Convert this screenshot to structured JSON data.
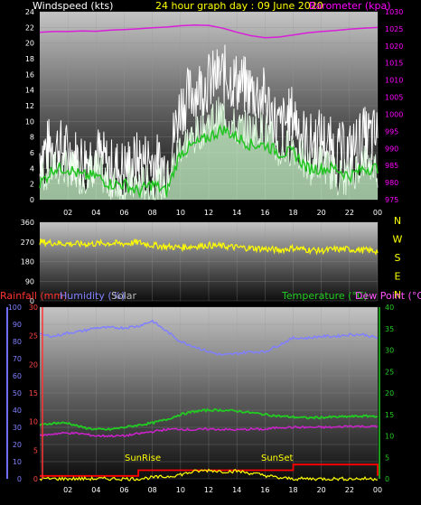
{
  "header": {
    "windspeed_label": "Windspeed (kts)",
    "title": "24 hour graph day : 09 June 2020",
    "barometer_label": "Barometer (kpa)"
  },
  "bottom_header": {
    "rainfall_label": "Rainfall (mm)",
    "humidity_label": "Humidity (%)",
    "solar_label": "Solar",
    "temperature_label": "Temperature (°C)",
    "dewpoint_label": "Dew Point (°C)"
  },
  "annotations": {
    "sunrise": "SunRise",
    "sunset": "SunSet"
  },
  "colors": {
    "windspeed": "#ffffff",
    "gust": "#ffffff",
    "wind_avg": "#22c422",
    "wind_fill": "#c8f5c8",
    "barometer": "#d81ed8",
    "direction": "#ffff00",
    "rainfall": "#ff0000",
    "humidity": "#8080ff",
    "solar": "#ffff00",
    "temperature": "#22cc22",
    "dewpoint": "#cc22cc",
    "left_axis_bottom": "#6d6dff",
    "rain_axis": "#ff3333",
    "temp_axis": "#22cc22"
  },
  "chart_data": [
    {
      "type": "line",
      "id": "wind",
      "title": "24 hour graph day : 09 June 2020",
      "x_ticks": [
        "02",
        "04",
        "06",
        "08",
        "10",
        "12",
        "14",
        "16",
        "18",
        "20",
        "22",
        "00"
      ],
      "y_left": {
        "label": "Windspeed (kts)",
        "ticks": [
          0,
          2,
          4,
          6,
          8,
          10,
          12,
          14,
          16,
          18,
          20,
          22,
          24
        ],
        "lim": [
          0,
          24
        ]
      },
      "y_right": {
        "label": "Barometer (kpa)",
        "ticks": [
          975,
          980,
          985,
          990,
          995,
          1000,
          1005,
          1010,
          1015,
          1020,
          1025,
          1030
        ],
        "lim": [
          975,
          1030
        ]
      },
      "grid": true,
      "hours": [
        0,
        1,
        2,
        3,
        4,
        5,
        6,
        7,
        8,
        9,
        10,
        11,
        12,
        13,
        14,
        15,
        16,
        17,
        18,
        19,
        20,
        21,
        22,
        23,
        24
      ],
      "series": [
        {
          "name": "Gust",
          "values": [
            6,
            7,
            6,
            5,
            6,
            4,
            4,
            5,
            5,
            4,
            12,
            14,
            15,
            16,
            15,
            14,
            13,
            9,
            11,
            7,
            8,
            6,
            6,
            8,
            8
          ]
        },
        {
          "name": "Windspeed",
          "values": [
            3,
            4,
            4,
            3,
            4,
            2,
            2,
            2,
            2,
            2,
            7,
            8,
            10,
            11,
            9,
            9,
            9,
            6,
            7,
            4,
            5,
            3,
            3,
            5,
            4
          ]
        },
        {
          "name": "Average",
          "values": [
            2,
            4,
            4,
            3,
            3,
            2,
            2,
            1,
            2,
            1,
            6,
            7,
            8,
            9,
            8,
            7,
            7,
            6,
            6,
            4,
            4,
            4,
            3,
            4,
            4
          ]
        },
        {
          "name": "Barometer",
          "values": [
            1024,
            1024.2,
            1024.2,
            1024.4,
            1024.3,
            1024.6,
            1024.8,
            1025,
            1025.3,
            1025.5,
            1025.9,
            1026.1,
            1026,
            1025.2,
            1024,
            1023,
            1022.4,
            1022.6,
            1023.2,
            1023.8,
            1024.2,
            1024.5,
            1024.9,
            1025.2,
            1025.4
          ]
        }
      ]
    },
    {
      "type": "line",
      "id": "direction",
      "y_left": {
        "ticks": [
          0,
          90,
          180,
          270,
          360
        ],
        "lim": [
          0,
          360
        ]
      },
      "y_right_labels": [
        "N",
        "W",
        "S",
        "E",
        "N"
      ],
      "grid": true,
      "hours": [
        0,
        1,
        2,
        3,
        4,
        5,
        6,
        7,
        8,
        9,
        10,
        11,
        12,
        13,
        14,
        15,
        16,
        17,
        18,
        19,
        20,
        21,
        22,
        23,
        24
      ],
      "series": [
        {
          "name": "Direction",
          "values": [
            270,
            265,
            262,
            260,
            262,
            264,
            262,
            268,
            255,
            248,
            245,
            250,
            255,
            250,
            245,
            242,
            238,
            232,
            242,
            234,
            230,
            236,
            236,
            232,
            228
          ]
        }
      ]
    },
    {
      "type": "line",
      "id": "climate",
      "x_ticks": [
        "02",
        "04",
        "06",
        "08",
        "10",
        "12",
        "14",
        "16",
        "18",
        "20",
        "22",
        "00"
      ],
      "y_left_humidity": {
        "label": "Humidity (%)",
        "ticks": [
          0,
          10,
          20,
          30,
          40,
          50,
          60,
          70,
          80,
          90,
          100
        ],
        "lim": [
          0,
          100
        ]
      },
      "y_left_rain": {
        "label": "Rainfall (mm)",
        "ticks": [
          0,
          5,
          10,
          15,
          20,
          25,
          30
        ],
        "lim": [
          0,
          30
        ]
      },
      "y_right_temp": {
        "label": "Temperature (°C)",
        "ticks": [
          0,
          5,
          10,
          15,
          20,
          25,
          30,
          35,
          40
        ],
        "lim": [
          0,
          40
        ]
      },
      "grid": true,
      "hours": [
        0,
        1,
        2,
        3,
        4,
        5,
        6,
        7,
        8,
        9,
        10,
        11,
        12,
        13,
        14,
        15,
        16,
        17,
        18,
        19,
        20,
        21,
        22,
        23,
        24
      ],
      "series": [
        {
          "name": "Humidity",
          "values": [
            84,
            83,
            85,
            86,
            88,
            88,
            88,
            89,
            92,
            86,
            80,
            77,
            74,
            72,
            73,
            74,
            74,
            78,
            82,
            82,
            83,
            83,
            84,
            84,
            82
          ]
        },
        {
          "name": "Temperature",
          "values": [
            12.5,
            13,
            13,
            12,
            11.5,
            11.5,
            12,
            12.5,
            13,
            13.8,
            15,
            15.7,
            16,
            16,
            15.8,
            15.4,
            15,
            14.6,
            14.4,
            14.2,
            14.3,
            14.4,
            14.5,
            14.6,
            14.6
          ]
        },
        {
          "name": "Dew Point",
          "values": [
            10,
            10.5,
            10.7,
            10.5,
            10,
            10,
            10,
            10.5,
            11,
            11.5,
            11.6,
            11.4,
            11.6,
            11.5,
            11.4,
            11.6,
            11.5,
            12,
            12,
            12,
            12,
            12,
            12.3,
            12.2,
            12.2
          ]
        },
        {
          "name": "Rainfall",
          "values": [
            0.5,
            0.5,
            0.5,
            0.5,
            0.5,
            0.5,
            0.5,
            1.5,
            1.5,
            1.5,
            1.5,
            1.5,
            1.5,
            1.5,
            1.5,
            1.5,
            1.5,
            1.5,
            2.5,
            2.5,
            2.5,
            2.5,
            2.5,
            2.5,
            0.5
          ]
        },
        {
          "name": "Solar",
          "values": [
            0,
            0,
            0,
            0,
            0,
            0,
            0,
            0,
            0.3,
            0.5,
            1.0,
            1.7,
            2.0,
            1.7,
            1.8,
            1.3,
            0.8,
            0.2,
            0,
            0,
            0,
            0,
            0,
            0,
            0
          ]
        }
      ]
    }
  ]
}
